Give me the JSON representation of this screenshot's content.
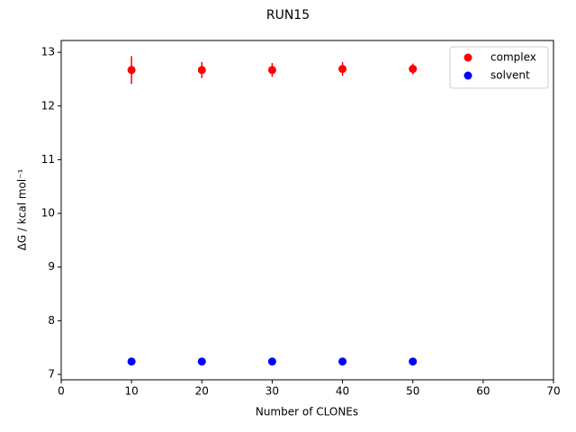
{
  "chart_data": {
    "type": "scatter",
    "title": "RUN15",
    "x_label": "Number of CLONEs",
    "y_label": "ΔG / kcal mol⁻¹",
    "x": [
      10,
      20,
      30,
      40,
      50
    ],
    "series": [
      {
        "name": "complex",
        "color": "#ff0000",
        "values": [
          12.67,
          12.67,
          12.67,
          12.69,
          12.69
        ],
        "errors": [
          0.26,
          0.15,
          0.13,
          0.13,
          0.1
        ]
      },
      {
        "name": "solvent",
        "color": "#0000ff",
        "values": [
          7.24,
          7.24,
          7.24,
          7.24,
          7.24
        ],
        "errors": [
          0.02,
          0.02,
          0.02,
          0.02,
          0.02
        ]
      }
    ],
    "xlim": [
      0,
      70
    ],
    "xticks": [
      0,
      10,
      20,
      30,
      40,
      50,
      60,
      70
    ],
    "ylim": [
      6.9,
      13.22
    ],
    "yticks": [
      7,
      8,
      9,
      10,
      11,
      12,
      13
    ],
    "legend": "upper right"
  }
}
